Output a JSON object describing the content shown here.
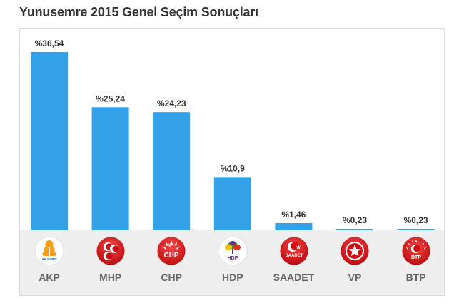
{
  "title": "Yunusemre 2015 Genel Seçim Sonuçları",
  "chart_data": {
    "type": "bar",
    "title": "Yunusemre 2015 Genel Seçim Sonuçları",
    "categories": [
      "AKP",
      "MHP",
      "CHP",
      "HDP",
      "SAADET",
      "VP",
      "BTP"
    ],
    "values": [
      36.54,
      25.24,
      24.23,
      10.9,
      1.46,
      0.23,
      0.23
    ],
    "value_labels": [
      "%36,54",
      "%25,24",
      "%24,23",
      "%10,9",
      "%1,46",
      "%0,23",
      "%0,23"
    ],
    "logo_text": [
      "AK PARTİ",
      "",
      "CHP",
      "HDP",
      "SAADET",
      "",
      "BTP"
    ],
    "ylim": [
      0,
      36.54
    ],
    "grid": false,
    "bar_color": "#33a0e8"
  },
  "colors": {
    "bar": "#33a0e8",
    "akp_orange": "#f6a01a",
    "akp_blue": "#1f6fb5",
    "mhp_red": "#d9151b",
    "chp_red": "#e3141b",
    "hdp_green": "#3a9b3a",
    "hdp_purple": "#6b2d86",
    "saadet_red": "#e30a17",
    "vp_red": "#d9131a",
    "btp_red": "#d9131a"
  },
  "icons": [
    "akp-logo",
    "mhp-logo",
    "chp-logo",
    "hdp-logo",
    "saadet-logo",
    "vp-logo",
    "btp-logo"
  ]
}
